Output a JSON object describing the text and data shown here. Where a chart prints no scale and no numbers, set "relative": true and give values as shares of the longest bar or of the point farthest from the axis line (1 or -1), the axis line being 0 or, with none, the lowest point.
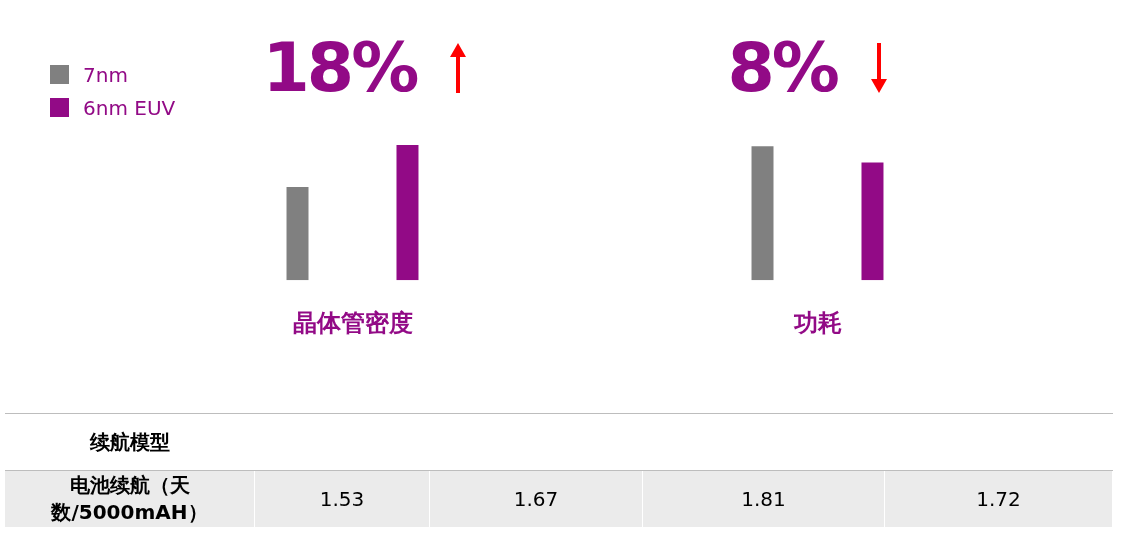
{
  "chart_data": [
    {
      "type": "bar",
      "relative": true,
      "categories": [
        "晶体管密度",
        "功耗"
      ],
      "series": [
        {
          "name": "7nm",
          "color": "#808080",
          "values": [
            0.69,
            0.99
          ]
        },
        {
          "name": "6nm EUV",
          "color": "#920a86",
          "values": [
            1,
            0.87
          ]
        }
      ],
      "legend": "top left",
      "annotations": [
        "18%",
        "8%"
      ]
    },
    {
      "type": "other",
      "title": "续航模型",
      "ylabel": "电池续航（天数/5000mAH）",
      "categories": [
        null,
        null,
        null,
        null
      ],
      "values": [
        1.53,
        1.67,
        1.81,
        1.72
      ],
      "data_labels": true
    }
  ]
}
